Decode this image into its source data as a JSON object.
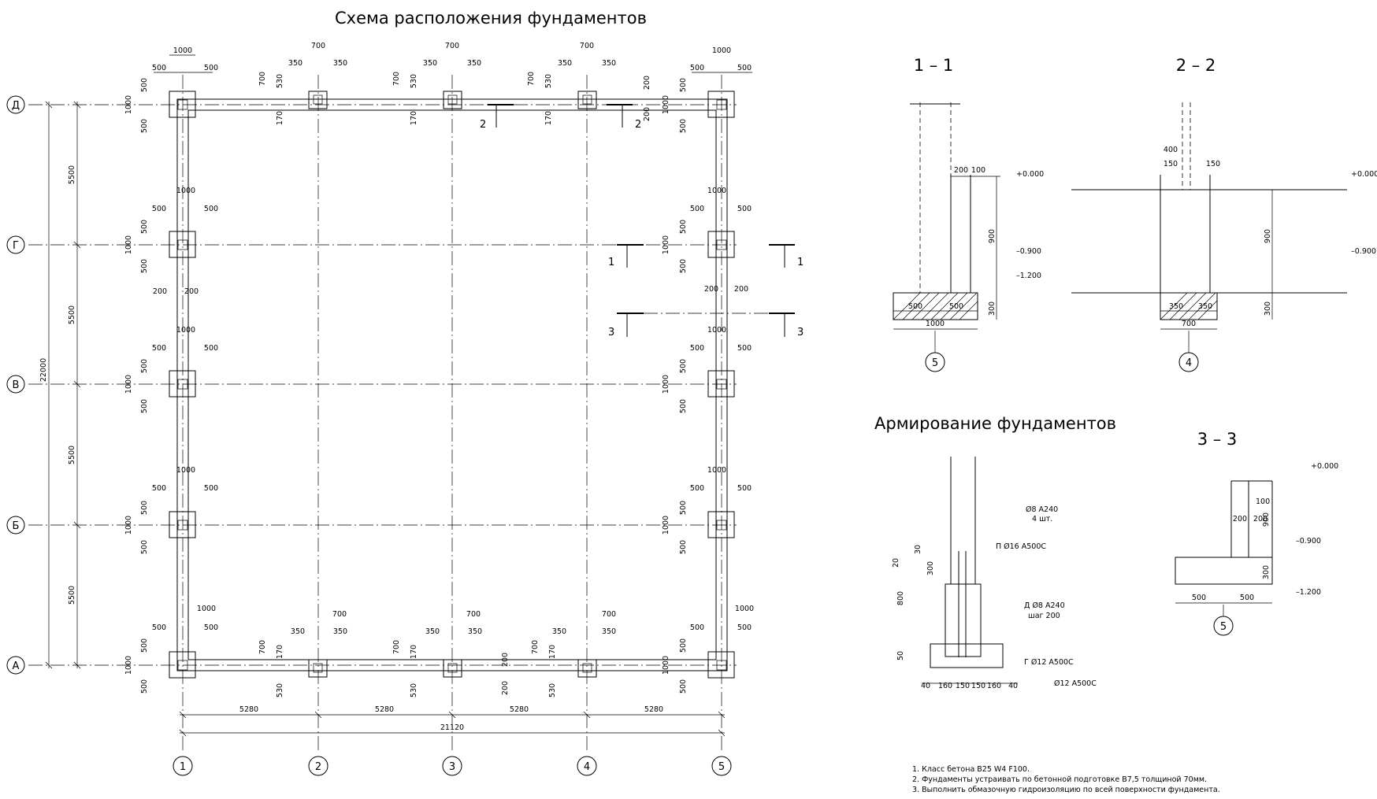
{
  "titles": {
    "plan": "Схема расположения фундаментов",
    "reinforcement": "Армирование фундаментов"
  },
  "sections": {
    "s11": "1 – 1",
    "s22": "2 – 2",
    "s33": "3 – 3"
  },
  "axes": {
    "letters": [
      "Д",
      "Г",
      "В",
      "Б",
      "А"
    ],
    "numbers": [
      "1",
      "2",
      "3",
      "4",
      "5"
    ]
  },
  "plan_dims": {
    "spans": [
      "5280",
      "5280",
      "5280",
      "5280"
    ],
    "total_h": "21120",
    "rows": [
      "5500",
      "5500",
      "5500",
      "5500"
    ],
    "total_v": "22000",
    "corner_w": "1000",
    "half": "500",
    "small_w": "700",
    "small_half": "350",
    "wall_off_a": "530",
    "wall_off_b": "170",
    "wall": "200"
  },
  "cut_labels": [
    "2",
    "2",
    "1",
    "1",
    "3",
    "3"
  ],
  "sec11": {
    "d200": "200",
    "d100": "100",
    "top": "+0.000",
    "depth": "900",
    "lvl1": "–0.900",
    "pad": "300",
    "lvl2": "–1.200",
    "b1": "500",
    "b2": "500",
    "b": "1000",
    "axis": "5"
  },
  "sec22": {
    "d400": "400",
    "d150a": "150",
    "d150b": "150",
    "top": "+0.000",
    "depth": "900",
    "lvl1": "–0.900",
    "pad": "300",
    "b1": "350",
    "b2": "350",
    "b": "700",
    "axis": "4"
  },
  "sec33": {
    "top": "+0.000",
    "d100": "100",
    "d200a": "200",
    "d200b": "200",
    "depth": "900",
    "lvl1": "–0.900",
    "pad": "300",
    "lvl2": "–1.200",
    "b1": "500",
    "b2": "500",
    "axis": "5"
  },
  "reinf": {
    "bar1": "Ø8 А240",
    "bar1b": "4 шт.",
    "bar2": "П Ø16 А500С",
    "bar3": "Д Ø8 А240",
    "bar3b": "шаг 200",
    "bar4": "Г Ø12 А500С",
    "bar5": "Ø12 А500С",
    "v30": "30",
    "v20": "20",
    "v300": "300",
    "v800": "800",
    "v50": "50",
    "h": [
      "40",
      "160",
      "150",
      "150",
      "160",
      "40"
    ]
  },
  "notes": [
    "1. Класс бетона B25 W4 F100.",
    "2. Фундаменты устраивать по бетонной подготовке B7,5 толщиной 70мм.",
    "3. Выполнить обмазочную гидроизоляцию по всей поверхности фундамента."
  ]
}
